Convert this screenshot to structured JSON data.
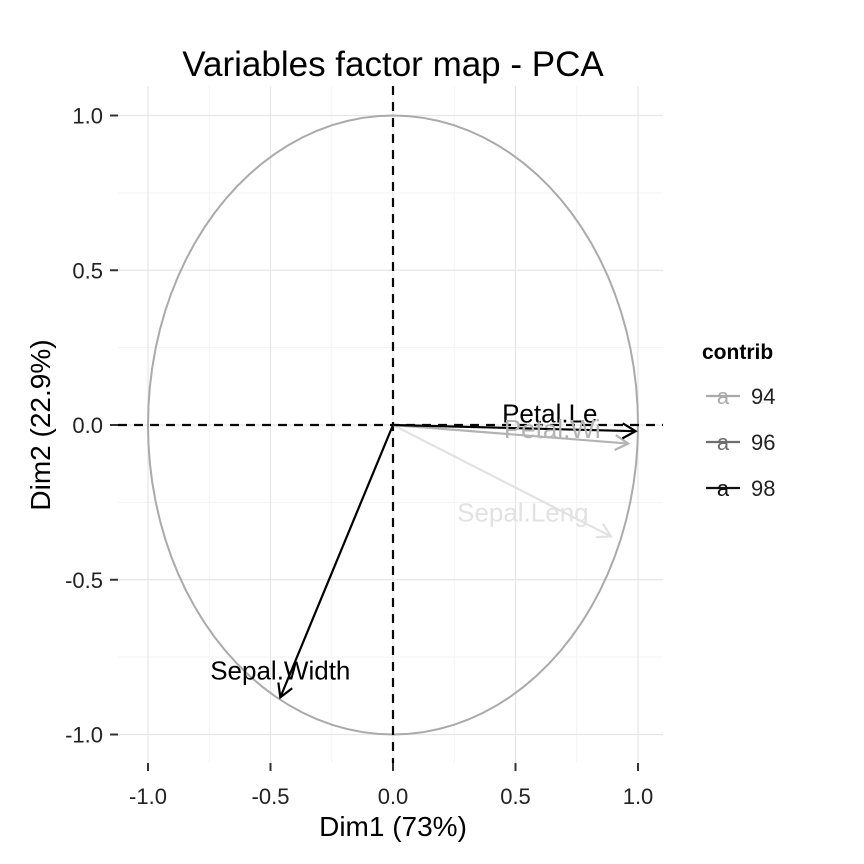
{
  "chart_data": {
    "type": "scatter",
    "title": "Variables factor map - PCA",
    "xlabel": "Dim1 (73%)",
    "ylabel": "Dim2 (22.9%)",
    "xlim": [
      -1.1,
      1.1
    ],
    "ylim": [
      -1.1,
      1.1
    ],
    "x_ticks": [
      -1.0,
      -0.5,
      0.0,
      0.5,
      1.0
    ],
    "x_tick_labels": [
      "-1.0",
      "-0.5",
      "0.0",
      "0.5",
      "1.0"
    ],
    "y_ticks": [
      1.0,
      0.5,
      0.0,
      -0.5,
      -1.0
    ],
    "y_tick_labels": [
      "1.0",
      "0.5",
      "0.0",
      "-0.5",
      "-1.0"
    ],
    "grid": true,
    "unit_circle": true,
    "legend": {
      "title": "contrib",
      "position": "right",
      "glyph": "a",
      "entries": [
        {
          "label": "94",
          "color": "#aaaaaa"
        },
        {
          "label": "96",
          "color": "#6e6e6e"
        },
        {
          "label": "98",
          "color": "#111111"
        }
      ]
    },
    "series": [
      {
        "name": "Sepal.Length",
        "x": 0.89,
        "y": -0.36,
        "color": "#e2e2e2"
      },
      {
        "name": "Sepal.Width",
        "x": -0.46,
        "y": -0.88,
        "color": "#000000"
      },
      {
        "name": "Petal.Length",
        "x": 0.99,
        "y": -0.02,
        "color": "#000000"
      },
      {
        "name": "Petal.Width",
        "x": 0.96,
        "y": -0.06,
        "color": "#b3b3b3"
      }
    ],
    "labels": [
      {
        "text": "Sepal.Leng",
        "x": 0.53,
        "y": -0.29,
        "color": "#e2e2e2"
      },
      {
        "text": "Sepal.Width",
        "x": -0.46,
        "y": -0.8,
        "color": "#000000"
      },
      {
        "text": "Petal.Le",
        "x": 0.64,
        "y": 0.03,
        "color": "#000000"
      },
      {
        "text": "Petal.Wi",
        "x": 0.65,
        "y": -0.02,
        "color": "#b3b3b3"
      }
    ]
  }
}
